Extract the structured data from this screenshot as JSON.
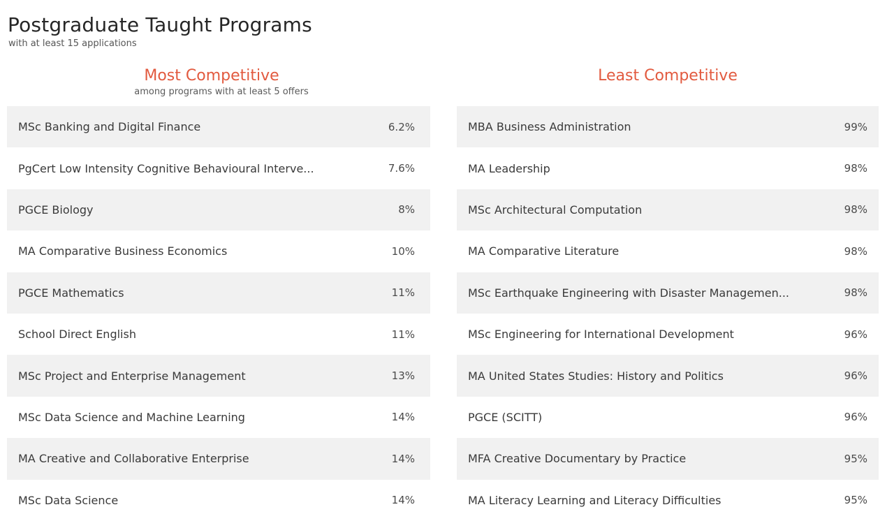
{
  "header": {
    "title": "Postgraduate Taught Programs",
    "subtitle": "with at least 15 applications"
  },
  "most_competitive": {
    "heading": "Most Competitive",
    "note": "among programs with at least 5 offers",
    "heading_color": "#e25a3f",
    "rows": [
      {
        "name": "MSc Banking and Digital Finance",
        "value": "6.2%"
      },
      {
        "name": "PgCert Low Intensity Cognitive Behavioural Interve...",
        "value": "7.6%"
      },
      {
        "name": "PGCE Biology",
        "value": "8%"
      },
      {
        "name": "MA Comparative Business Economics",
        "value": "10%"
      },
      {
        "name": "PGCE Mathematics",
        "value": "11%"
      },
      {
        "name": "School Direct English",
        "value": "11%"
      },
      {
        "name": "MSc Project and Enterprise Management",
        "value": "13%"
      },
      {
        "name": "MSc Data Science and Machine Learning",
        "value": "14%"
      },
      {
        "name": "MA Creative and Collaborative Enterprise",
        "value": "14%"
      },
      {
        "name": "MSc Data Science",
        "value": "14%"
      }
    ]
  },
  "least_competitive": {
    "heading": "Least Competitive",
    "heading_color": "#e25a3f",
    "rows": [
      {
        "name": "MBA Business Administration",
        "value": "99%"
      },
      {
        "name": "MA Leadership",
        "value": "98%"
      },
      {
        "name": "MSc Architectural Computation",
        "value": "98%"
      },
      {
        "name": "MA Comparative Literature",
        "value": "98%"
      },
      {
        "name": "MSc Earthquake Engineering with Disaster Managemen...",
        "value": "98%"
      },
      {
        "name": "MSc Engineering for International Development",
        "value": "96%"
      },
      {
        "name": "MA United States Studies: History and Politics",
        "value": "96%"
      },
      {
        "name": "PGCE (SCITT)",
        "value": "96%"
      },
      {
        "name": "MFA Creative Documentary by Practice",
        "value": "95%"
      },
      {
        "name": "MA Literacy Learning and Literacy Difficulties",
        "value": "95%"
      }
    ]
  }
}
